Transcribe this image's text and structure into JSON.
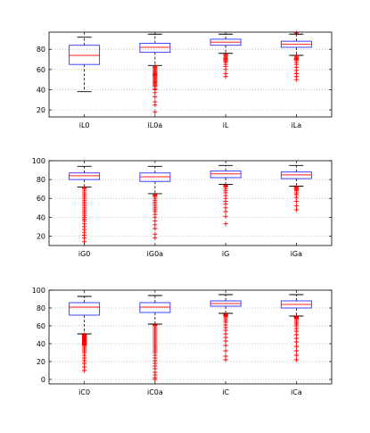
{
  "colors": {
    "box": "#2f2fff",
    "median": "#ff2222",
    "whisker": "#000000",
    "outlier": "#ff0000",
    "grid": "#b0b0b0",
    "axis": "#000000"
  },
  "chart_data": [
    {
      "type": "boxplot",
      "categories": [
        "iL0",
        "iL0a",
        "iL",
        "iLa"
      ],
      "ylim": [
        13,
        97
      ],
      "yticks": [
        20,
        40,
        60,
        80
      ],
      "grid": "horizontal-dotted",
      "boxes": [
        {
          "label": "iL0",
          "whisker_low": 38,
          "q1": 65,
          "median": 74,
          "q3": 84,
          "whisker_high": 92,
          "outliers": []
        },
        {
          "label": "iL0a",
          "whisker_low": 64,
          "q1": 77,
          "median": 82,
          "q3": 86,
          "whisker_high": 95,
          "outliers": [
            18,
            25,
            28,
            33,
            37,
            40,
            41,
            43,
            44,
            45,
            46,
            47,
            48,
            49,
            50,
            51,
            52,
            53,
            54,
            55,
            56,
            57,
            58,
            59,
            60,
            61,
            62,
            63
          ]
        },
        {
          "label": "iL",
          "whisker_low": 76,
          "q1": 84,
          "median": 87,
          "q3": 90,
          "whisker_high": 95,
          "outliers": [
            53,
            56,
            60,
            63,
            65,
            67,
            68,
            69,
            70,
            71,
            72,
            73,
            74,
            75
          ]
        },
        {
          "label": "iLa",
          "whisker_low": 74,
          "q1": 82,
          "median": 85,
          "q3": 88,
          "whisker_high": 95,
          "outliers": [
            50,
            53,
            56,
            59,
            62,
            65,
            67,
            69,
            70,
            71,
            72,
            73,
            96
          ]
        }
      ]
    },
    {
      "type": "boxplot",
      "categories": [
        "iG0",
        "iG0a",
        "iG",
        "iGa"
      ],
      "ylim": [
        10,
        100
      ],
      "yticks": [
        20,
        40,
        60,
        80,
        100
      ],
      "grid": "horizontal-dotted",
      "boxes": [
        {
          "label": "iG0",
          "whisker_low": 72,
          "q1": 80,
          "median": 84,
          "q3": 87,
          "whisker_high": 94,
          "outliers": [
            14,
            18,
            21,
            24,
            27,
            30,
            33,
            36,
            38,
            40,
            42,
            44,
            46,
            48,
            50,
            52,
            54,
            56,
            58,
            60,
            62,
            64,
            66,
            68,
            70,
            71
          ]
        },
        {
          "label": "iG0a",
          "whisker_low": 65,
          "q1": 78,
          "median": 83,
          "q3": 87,
          "whisker_high": 94,
          "outliers": [
            18,
            22,
            28,
            32,
            36,
            40,
            43,
            46,
            48,
            50,
            52,
            54,
            56,
            58,
            60,
            62,
            63,
            64
          ]
        },
        {
          "label": "iG",
          "whisker_low": 75,
          "q1": 82,
          "median": 86,
          "q3": 89,
          "whisker_high": 95,
          "outliers": [
            33,
            41,
            46,
            50,
            54,
            57,
            60,
            63,
            66,
            68,
            70,
            72,
            73,
            74
          ]
        },
        {
          "label": "iGa",
          "whisker_low": 73,
          "q1": 81,
          "median": 85,
          "q3": 88,
          "whisker_high": 95,
          "outliers": [
            48,
            52,
            57,
            61,
            64,
            66,
            68,
            69,
            70,
            71,
            72
          ]
        }
      ]
    },
    {
      "type": "boxplot",
      "categories": [
        "iC0",
        "iC0a",
        "iC",
        "iCa"
      ],
      "ylim": [
        -5,
        100
      ],
      "yticks": [
        0,
        20,
        40,
        60,
        80,
        100
      ],
      "grid": "horizontal-dotted",
      "boxes": [
        {
          "label": "iC0",
          "whisker_low": 51,
          "q1": 72,
          "median": 81,
          "q3": 86,
          "whisker_high": 93,
          "outliers": [
            10,
            14,
            18,
            21,
            24,
            27,
            30,
            32,
            34,
            36,
            38,
            39,
            40,
            41,
            42,
            43,
            44,
            45,
            46,
            47,
            48,
            49,
            50
          ]
        },
        {
          "label": "iC0a",
          "whisker_low": 62,
          "q1": 75,
          "median": 81,
          "q3": 86,
          "whisker_high": 94,
          "outliers": [
            0,
            2,
            5,
            8,
            12,
            15,
            18,
            21,
            24,
            27,
            30,
            32,
            34,
            36,
            38,
            40,
            42,
            44,
            46,
            48,
            50,
            52,
            54,
            56,
            58,
            60,
            61
          ]
        },
        {
          "label": "iC",
          "whisker_low": 74,
          "q1": 82,
          "median": 85,
          "q3": 88,
          "whisker_high": 95,
          "outliers": [
            22,
            26,
            32,
            38,
            43,
            47,
            51,
            55,
            58,
            61,
            64,
            66,
            68,
            70,
            71,
            72,
            73
          ]
        },
        {
          "label": "iCa",
          "whisker_low": 71,
          "q1": 80,
          "median": 84,
          "q3": 88,
          "whisker_high": 95,
          "outliers": [
            22,
            27,
            32,
            37,
            42,
            46,
            50,
            54,
            57,
            60,
            62,
            64,
            66,
            68,
            69,
            70
          ]
        }
      ]
    }
  ]
}
